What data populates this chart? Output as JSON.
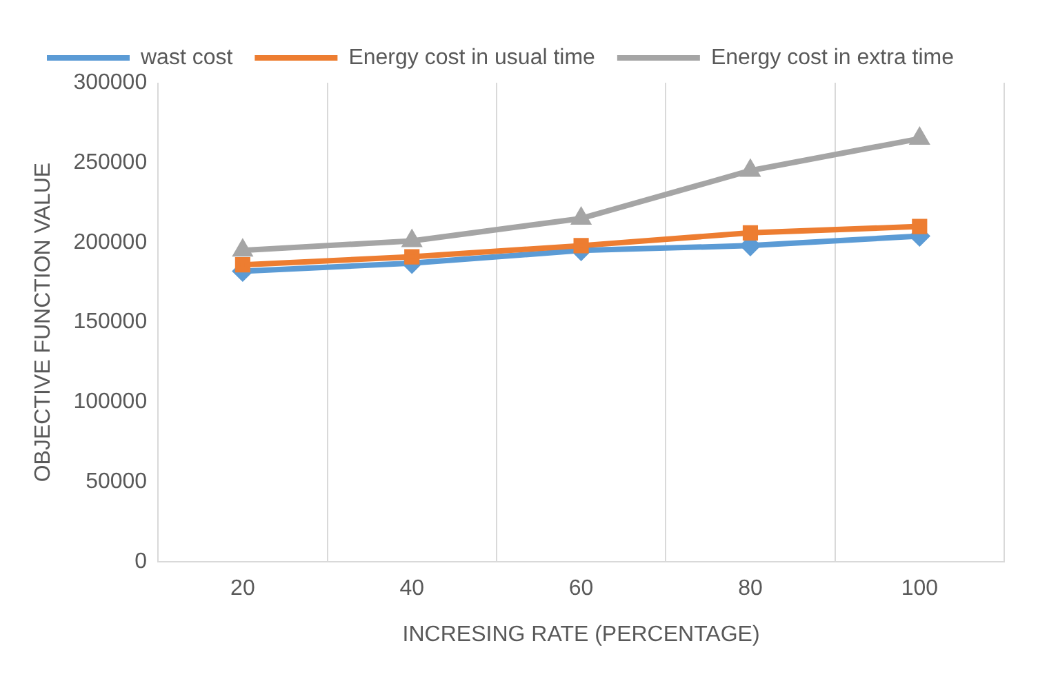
{
  "chart_data": {
    "type": "line",
    "categories": [
      "20",
      "40",
      "60",
      "80",
      "100"
    ],
    "xlabel": "INCRESING RATE (PERCENTAGE)",
    "ylabel": "OBJECTIVE FUNCTION VALUE",
    "ylim": [
      0,
      300000
    ],
    "yticks": [
      0,
      50000,
      100000,
      150000,
      200000,
      250000,
      300000
    ],
    "grid": "x",
    "legend": "top",
    "series": [
      {
        "name": "wast cost",
        "color": "#5b9bd5",
        "marker": "diamond",
        "values": [
          182000,
          187000,
          195000,
          198000,
          204000
        ]
      },
      {
        "name": "Energy cost in usual time",
        "color": "#ed7d31",
        "marker": "square",
        "values": [
          186000,
          191000,
          198000,
          206000,
          210000
        ]
      },
      {
        "name": "Energy cost in extra time",
        "color": "#a5a5a5",
        "marker": "triangle",
        "values": [
          195000,
          201000,
          215000,
          245000,
          265000
        ]
      }
    ]
  }
}
